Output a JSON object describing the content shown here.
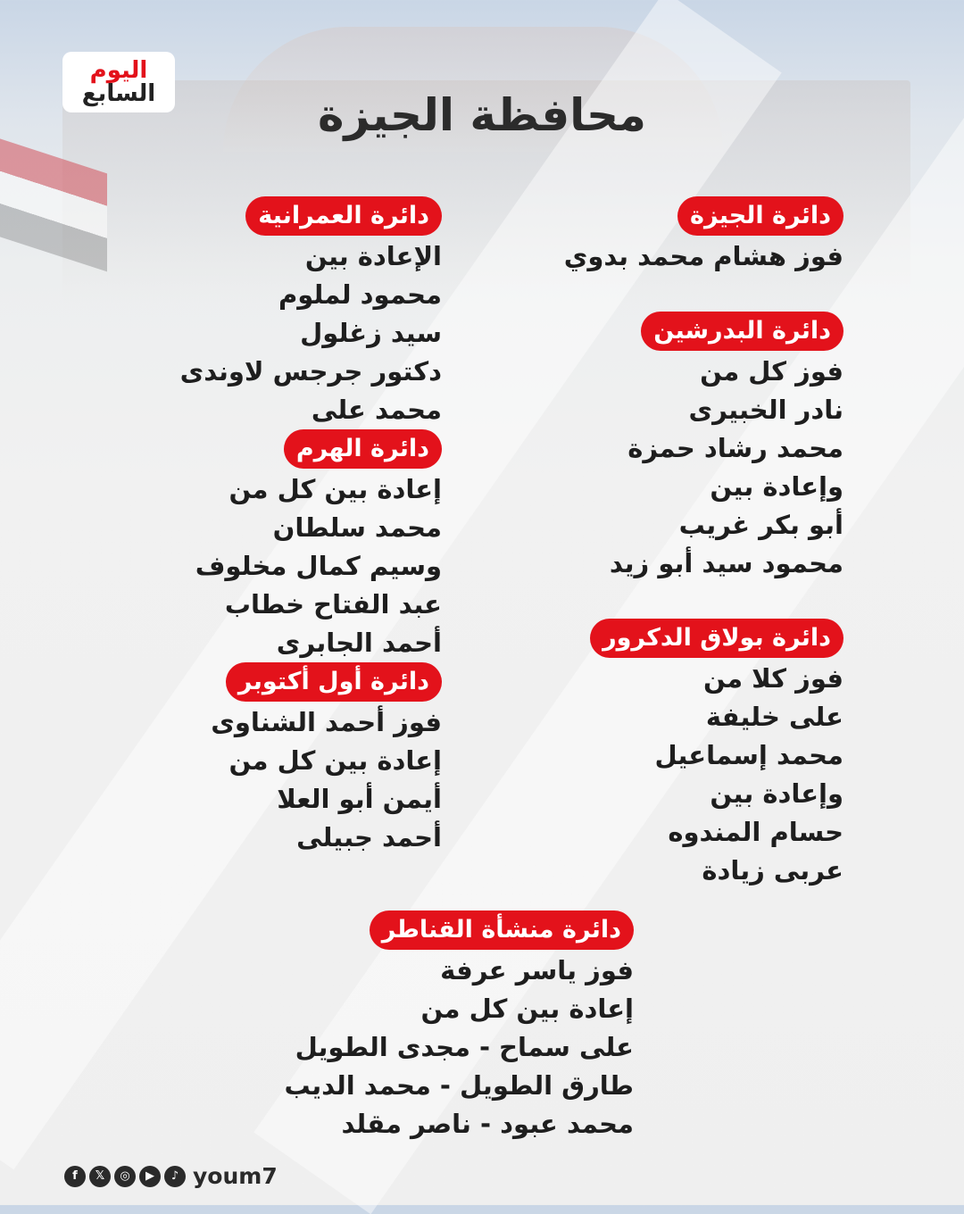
{
  "logo": {
    "line1": "اليوم",
    "line2": "السابع"
  },
  "title": "محافظة الجيزة",
  "right_column": [
    {
      "header": "دائرة الجيزة",
      "lines": [
        "فوز هشام محمد بدوي"
      ]
    },
    {
      "header": "دائرة البدرشين",
      "lines": [
        "فوز كل من",
        "نادر الخبيرى",
        "محمد رشاد حمزة",
        "وإعادة بين",
        "أبو بكر غريب",
        "محمود سيد أبو زيد"
      ]
    },
    {
      "header": "دائرة بولاق الدكرور",
      "lines": [
        "فوز كلا من",
        "على خليفة",
        "محمد إسماعيل",
        "وإعادة بين",
        "حسام المندوه",
        "عربى زيادة"
      ]
    }
  ],
  "left_column": [
    {
      "header": "دائرة العمرانية",
      "lines": [
        "الإعادة بين",
        "محمود لملوم",
        "سيد زغلول",
        "دكتور جرجس لاوندى",
        "محمد على"
      ]
    },
    {
      "header": "دائرة الهرم",
      "lines": [
        "إعادة بين كل من",
        "محمد سلطان",
        "وسيم كمال مخلوف",
        "عبد الفتاح خطاب",
        "أحمد الجابرى"
      ]
    },
    {
      "header": "دائرة أول أكتوبر",
      "lines": [
        "فوز أحمد الشناوى",
        "إعادة بين كل من",
        "أيمن أبو العلا",
        "أحمد جبيلى"
      ]
    }
  ],
  "center_column": [
    {
      "header": "دائرة منشأة القناطر",
      "lines": [
        "فوز ياسر عرفة",
        "إعادة بين كل من",
        "على سماح - مجدى الطويل",
        "طارق الطويل - محمد الديب",
        "محمد عبود - ناصر مقلد"
      ]
    }
  ],
  "footer": {
    "icons": [
      "facebook-icon",
      "x-icon",
      "instagram-icon",
      "youtube-icon",
      "tiktok-icon"
    ],
    "icon_glyphs": [
      "f",
      "𝕏",
      "◎",
      "▶",
      "♪"
    ],
    "brand": "youm7"
  },
  "colors": {
    "accent": "#e3121b",
    "text": "#1e1e1e"
  }
}
